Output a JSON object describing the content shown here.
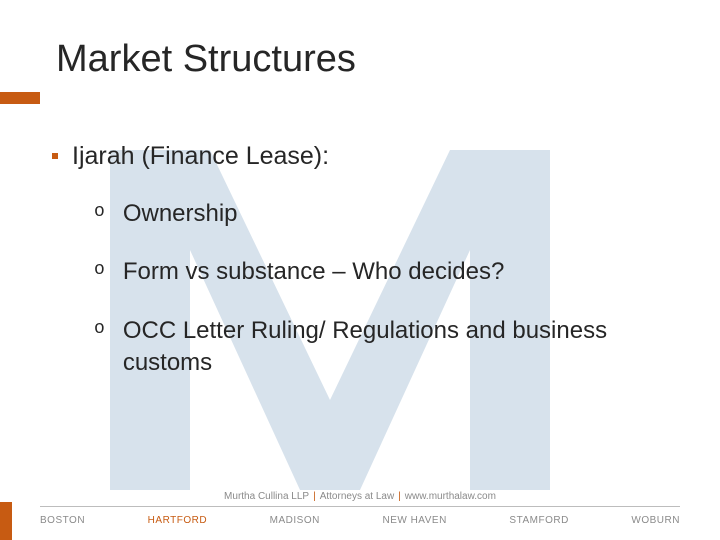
{
  "colors": {
    "accent": "#c75b12",
    "text": "#262626",
    "muted": "#8a8a8a",
    "watermark_fill": "#d7e2ec",
    "divider": "#bdbdbd",
    "background": "#ffffff"
  },
  "title": "Market Structures",
  "bullet": {
    "marker_color": "#c75b12",
    "text": "Ijarah (Finance Lease):"
  },
  "sub_items": [
    {
      "marker": "o",
      "text": "Ownership"
    },
    {
      "marker": "o",
      "text": "Form vs substance – Who decides?"
    },
    {
      "marker": "o",
      "text": "OCC Letter Ruling/ Regulations and business customs"
    }
  ],
  "footer": {
    "tagline_parts": [
      "Murtha Cullina LLP",
      "Attorneys at Law",
      "www.murthalaw.com"
    ],
    "cities": [
      {
        "name": "BOSTON",
        "active": false
      },
      {
        "name": "HARTFORD",
        "active": true
      },
      {
        "name": "MADISON",
        "active": false
      },
      {
        "name": "NEW HAVEN",
        "active": false
      },
      {
        "name": "STAMFORD",
        "active": false
      },
      {
        "name": "WOBURN",
        "active": false
      }
    ]
  }
}
